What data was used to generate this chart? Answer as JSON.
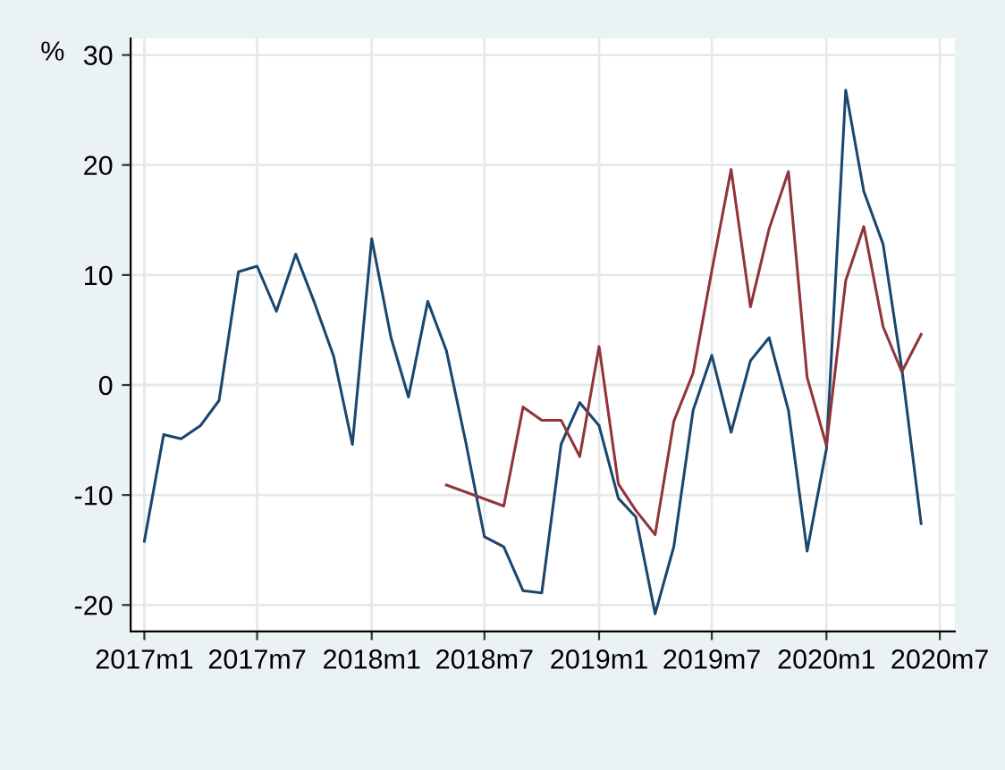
{
  "chart_data": {
    "type": "line",
    "ylabel": "%",
    "series": [
      {
        "color": "#1a476f",
        "x": [
          "2017-01",
          "2017-02",
          "2017-03",
          "2017-04",
          "2017-05",
          "2017-06",
          "2017-07",
          "2017-08",
          "2017-09",
          "2017-10",
          "2017-11",
          "2017-12",
          "2018-01",
          "2018-02",
          "2018-03",
          "2018-04",
          "2018-05",
          "2018-06",
          "2018-07",
          "2018-08",
          "2018-09",
          "2018-10",
          "2018-11",
          "2018-12",
          "2019-01",
          "2019-02",
          "2019-03",
          "2019-04",
          "2019-05",
          "2019-06",
          "2019-07",
          "2019-08",
          "2019-09",
          "2019-10",
          "2019-11",
          "2019-12",
          "2020-01",
          "2020-02",
          "2020-03",
          "2020-04",
          "2020-05",
          "2020-06"
        ],
        "values": [
          -14.2,
          -4.5,
          -4.9,
          -3.7,
          -1.4,
          10.3,
          10.8,
          6.7,
          11.9,
          7.5,
          2.6,
          -5.4,
          13.3,
          4.3,
          -1.1,
          7.6,
          3.1,
          -5.2,
          -13.8,
          -14.7,
          -18.7,
          -18.9,
          -5.4,
          -1.6,
          -3.7,
          -10.3,
          -12.0,
          -20.8,
          -14.7,
          -2.3,
          2.7,
          -4.3,
          2.2,
          4.3,
          -2.3,
          -15.1,
          -5.8,
          26.8,
          17.6,
          12.8,
          1.5,
          -12.6
        ]
      },
      {
        "color": "#90353b",
        "x": [
          "2018-05",
          "2018-08",
          "2018-09",
          "2018-10",
          "2018-11",
          "2018-12",
          "2019-01",
          "2019-02",
          "2019-03",
          "2019-04",
          "2019-05",
          "2019-06",
          "2019-07",
          "2019-08",
          "2019-09",
          "2019-10",
          "2019-11",
          "2019-12",
          "2020-01",
          "2020-02",
          "2020-03",
          "2020-04",
          "2020-05",
          "2020-06"
        ],
        "values": [
          -9.1,
          -11.0,
          -2.0,
          -3.2,
          -3.2,
          -6.5,
          3.5,
          -9.0,
          -11.4,
          -13.6,
          -3.3,
          1.1,
          10.4,
          19.6,
          7.1,
          14.2,
          19.4,
          0.7,
          -5.5,
          9.5,
          14.4,
          5.3,
          1.2,
          4.6
        ]
      }
    ],
    "xlim": [
      "2016-12-10",
      "2020-07-25"
    ],
    "xticks": [
      {
        "value": "2017-01",
        "label": "2017m1"
      },
      {
        "value": "2017-07",
        "label": "2017m7"
      },
      {
        "value": "2018-01",
        "label": "2018m1"
      },
      {
        "value": "2018-07",
        "label": "2018m7"
      },
      {
        "value": "2019-01",
        "label": "2019m1"
      },
      {
        "value": "2019-07",
        "label": "2019m7"
      },
      {
        "value": "2020-01",
        "label": "2020m1"
      },
      {
        "value": "2020-07",
        "label": "2020m7"
      }
    ],
    "ylim": [
      -22.4,
      31.5
    ],
    "yticks": [
      -20,
      -10,
      0,
      10,
      20,
      30
    ],
    "grid": true,
    "marker": "none",
    "line_style": "solid"
  }
}
